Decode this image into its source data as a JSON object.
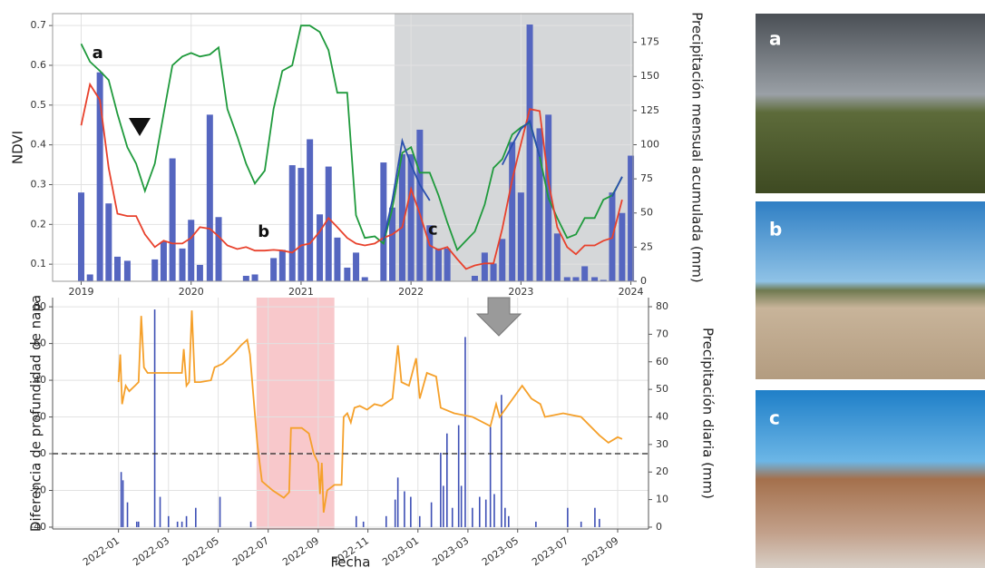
{
  "chart_data": [
    {
      "type": "combo",
      "ylabel": "NDVI",
      "y2label": "Precipitación mensual acumulada (mm)",
      "xlim": [
        2018.74,
        2024.02
      ],
      "xticks": [
        2019,
        2020,
        2021,
        2022,
        2023,
        2024
      ],
      "ylim": [
        0.057,
        0.73
      ],
      "yticks": [
        0.1,
        0.2,
        0.3,
        0.4,
        0.5,
        0.6,
        0.7
      ],
      "y2lim": [
        0,
        196
      ],
      "y2ticks": [
        0,
        25,
        50,
        75,
        100,
        125,
        150,
        175
      ],
      "grid": true,
      "frame": true,
      "highlight": {
        "range": [
          2021.85,
          2024.02
        ],
        "color": "#b9bcbf"
      },
      "x": [
        2019.0,
        2019.08,
        2019.17,
        2019.25,
        2019.33,
        2019.42,
        2019.5,
        2019.58,
        2019.67,
        2019.75,
        2019.83,
        2019.92,
        2020.0,
        2020.08,
        2020.17,
        2020.25,
        2020.33,
        2020.42,
        2020.5,
        2020.58,
        2020.67,
        2020.75,
        2020.83,
        2020.92,
        2021.0,
        2021.08,
        2021.17,
        2021.25,
        2021.33,
        2021.42,
        2021.5,
        2021.58,
        2021.67,
        2021.75,
        2021.83,
        2021.92,
        2022.0,
        2022.08,
        2022.17,
        2022.25,
        2022.33,
        2022.42,
        2022.5,
        2022.58,
        2022.67,
        2022.75,
        2022.83,
        2022.92,
        2023.0,
        2023.08,
        2023.17,
        2023.25,
        2023.33,
        2023.42,
        2023.5,
        2023.58,
        2023.67,
        2023.75,
        2023.83,
        2023.92,
        2024.0
      ],
      "series": [
        {
          "kind": "bar",
          "axis": "y2",
          "color": "#5566c0",
          "values": [
            65,
            5,
            153,
            57,
            18,
            15,
            0,
            0,
            16,
            29,
            90,
            24,
            45,
            12,
            122,
            47,
            0,
            0,
            4,
            5,
            0,
            17,
            23,
            85,
            83,
            104,
            49,
            84,
            32,
            10,
            21,
            3,
            0,
            87,
            54,
            93,
            93,
            111,
            41,
            24,
            24,
            0,
            0,
            4,
            21,
            13,
            31,
            102,
            65,
            188,
            112,
            122,
            35,
            3,
            3,
            11,
            3,
            1,
            65,
            50,
            92
          ]
        },
        {
          "kind": "line",
          "axis": "y",
          "color": "#1f9a3c",
          "values": [
            0.654,
            0.609,
            0.586,
            0.563,
            0.478,
            0.394,
            0.353,
            0.284,
            0.353,
            0.478,
            0.6,
            0.622,
            0.631,
            0.622,
            0.627,
            0.645,
            0.49,
            0.421,
            0.353,
            0.303,
            0.335,
            0.49,
            0.586,
            0.6,
            0.7,
            0.7,
            0.684,
            0.638,
            0.531,
            0.531,
            0.223,
            0.166,
            0.17,
            0.152,
            0.239,
            0.38,
            0.394,
            0.33,
            0.33,
            0.273,
            0.205,
            0.136,
            0.159,
            0.182,
            0.25,
            0.342,
            0.364,
            0.426,
            0.444,
            0.456,
            0.371,
            0.266,
            0.216,
            0.166,
            0.175,
            0.216,
            0.216,
            0.262,
            0.273,
            0.319,
            null
          ]
        },
        {
          "kind": "line",
          "axis": "y",
          "color": "#e8412c",
          "values": [
            0.449,
            0.552,
            0.513,
            0.342,
            0.227,
            0.221,
            0.221,
            0.175,
            0.143,
            0.159,
            0.152,
            0.152,
            0.166,
            0.193,
            0.189,
            0.17,
            0.147,
            0.138,
            0.143,
            0.134,
            0.134,
            0.136,
            0.134,
            0.129,
            0.147,
            0.152,
            0.182,
            0.216,
            0.193,
            0.166,
            0.152,
            0.147,
            0.152,
            0.166,
            0.175,
            0.193,
            0.289,
            0.227,
            0.147,
            0.136,
            0.143,
            0.113,
            0.088,
            0.097,
            0.102,
            0.102,
            0.189,
            0.312,
            0.403,
            0.49,
            0.485,
            0.307,
            0.193,
            0.143,
            0.125,
            0.147,
            0.147,
            0.159,
            0.166,
            0.262,
            null
          ]
        },
        {
          "kind": "line",
          "axis": "y",
          "color": "#2a4fae",
          "values": [
            null,
            null,
            null,
            null,
            null,
            null,
            null,
            null,
            null,
            null,
            null,
            null,
            null,
            null,
            null,
            null,
            null,
            null,
            null,
            null,
            null,
            null,
            null,
            null,
            null,
            null,
            null,
            null,
            null,
            null,
            null,
            null,
            null,
            0.16,
            0.26,
            0.41,
            0.35,
            0.3,
            0.26,
            null,
            null,
            null,
            null,
            null,
            null,
            null,
            0.35,
            0.4,
            0.44,
            0.46,
            0.37,
            null,
            null,
            null,
            null,
            null,
            null,
            null,
            0.27,
            0.32,
            null
          ]
        }
      ],
      "annotations": [
        {
          "text": "a",
          "x": 2019.15,
          "y": 0.63
        },
        {
          "text": "b",
          "x": 2020.66,
          "y": 0.18
        },
        {
          "text": "c",
          "x": 2022.2,
          "y": 0.186
        }
      ]
    },
    {
      "type": "combo",
      "xlabel": "Fecha",
      "ylabel": "Diferencia de profundidad de napa",
      "y2label": "Precipitación diaria (mm)",
      "xlim": [
        2021.78,
        2023.77
      ],
      "xticks": [
        {
          "value": 2022.0,
          "label": "2022-01"
        },
        {
          "value": 2022.167,
          "label": "2022-03"
        },
        {
          "value": 2022.333,
          "label": "2022-05"
        },
        {
          "value": 2022.5,
          "label": "2022-07"
        },
        {
          "value": 2022.667,
          "label": "2022-09"
        },
        {
          "value": 2022.833,
          "label": "2022-11"
        },
        {
          "value": 2023.0,
          "label": "2023-01"
        },
        {
          "value": 2023.167,
          "label": "2023-03"
        },
        {
          "value": 2023.333,
          "label": "2023-05"
        },
        {
          "value": 2023.5,
          "label": "2023-07"
        },
        {
          "value": 2023.667,
          "label": "2023-09"
        }
      ],
      "ylim": [
        -41,
        85
      ],
      "yticks": [
        -40,
        -20,
        0,
        20,
        40,
        60,
        80
      ],
      "y2lim": [
        -0.67,
        83.3
      ],
      "y2ticks": [
        0,
        10,
        20,
        30,
        40,
        50,
        60,
        70,
        80
      ],
      "grid": true,
      "frame": false,
      "hline": 0,
      "highlight": {
        "range": [
          2022.461,
          2022.721
        ],
        "color": "#f4a3a8"
      },
      "series": [
        {
          "kind": "bar",
          "axis": "y2",
          "color": "#3d4fb5",
          "x": [
            2022.009,
            2022.015,
            2022.03,
            2022.061,
            2022.067,
            2022.121,
            2022.139,
            2022.167,
            2022.197,
            2022.212,
            2022.227,
            2022.258,
            2022.339,
            2022.442,
            2022.794,
            2022.818,
            2022.894,
            2022.924,
            2022.933,
            2022.955,
            2022.976,
            2023.006,
            2023.045,
            2023.076,
            2023.085,
            2023.097,
            2023.115,
            2023.136,
            2023.145,
            2023.158,
            2023.182,
            2023.206,
            2023.227,
            2023.242,
            2023.255,
            2023.279,
            2023.291,
            2023.303,
            2023.394,
            2023.5,
            2023.545,
            2023.591,
            2023.606
          ],
          "values": [
            20,
            17,
            9,
            2,
            2,
            79,
            11,
            4,
            2,
            2,
            4,
            7,
            11,
            2,
            4,
            2,
            4,
            10,
            18,
            13,
            11,
            4,
            9,
            27,
            15,
            34,
            7,
            37,
            15,
            69,
            7,
            11,
            10,
            37,
            12,
            48,
            7,
            4,
            2,
            7,
            2,
            7,
            3
          ]
        },
        {
          "kind": "line",
          "axis": "y",
          "color": "#f5a02a",
          "x": [
            2022.0,
            2022.006,
            2022.012,
            2022.024,
            2022.036,
            2022.055,
            2022.067,
            2022.076,
            2022.085,
            2022.097,
            2022.212,
            2022.218,
            2022.227,
            2022.236,
            2022.245,
            2022.255,
            2022.273,
            2022.309,
            2022.321,
            2022.348,
            2022.388,
            2022.409,
            2022.43,
            2022.439,
            2022.464,
            2022.479,
            2022.515,
            2022.552,
            2022.57,
            2022.576,
            2022.612,
            2022.636,
            2022.652,
            2022.667,
            2022.673,
            2022.679,
            2022.685,
            2022.697,
            2022.721,
            2022.745,
            2022.752,
            2022.764,
            2022.776,
            2022.788,
            2022.806,
            2022.83,
            2022.855,
            2022.879,
            2022.915,
            2022.933,
            2022.945,
            2022.97,
            2022.994,
            2023.006,
            2023.03,
            2023.061,
            2023.076,
            2023.121,
            2023.182,
            2023.242,
            2023.261,
            2023.273,
            2023.348,
            2023.379,
            2023.409,
            2023.424,
            2023.485,
            2023.545,
            2023.606,
            2023.636,
            2023.667,
            2023.682
          ],
          "values": [
            39,
            54,
            27,
            37,
            34,
            37,
            39,
            75,
            47,
            44,
            44,
            57,
            37,
            39,
            78,
            39,
            39,
            40,
            47,
            49,
            55,
            59,
            62,
            54,
            5,
            -15,
            -20,
            -24,
            -21,
            14,
            14,
            11,
            0,
            -5,
            -22,
            -5,
            -32,
            -20,
            -17,
            -17,
            20,
            22,
            17,
            25,
            26,
            24,
            27,
            26,
            30,
            59,
            39,
            37,
            52,
            30,
            44,
            42,
            25,
            22,
            20,
            15,
            27,
            20,
            37,
            30,
            27,
            20,
            22,
            20,
            10,
            6,
            9,
            8
          ]
        }
      ]
    }
  ],
  "photos": [
    {
      "label": "a"
    },
    {
      "label": "b"
    },
    {
      "label": "c"
    }
  ]
}
